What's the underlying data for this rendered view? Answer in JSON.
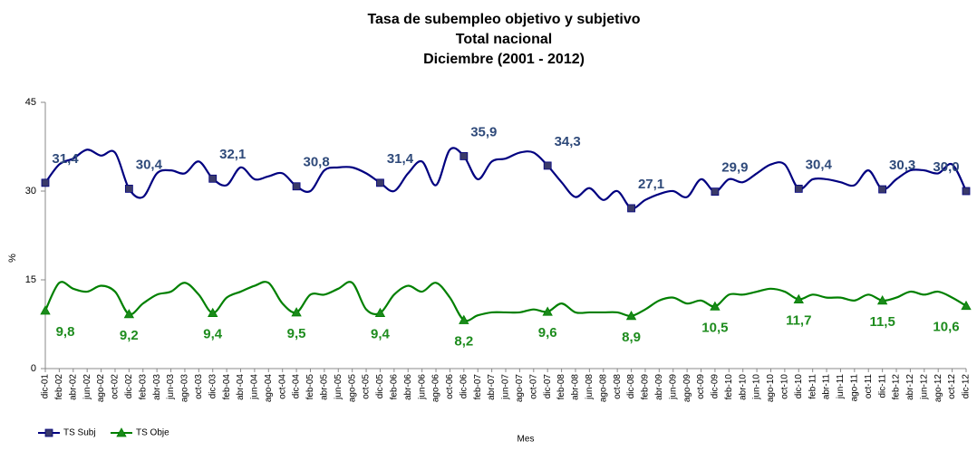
{
  "chart_data": {
    "type": "line",
    "title": "Tasa de subempleo objetivo y subjetivo",
    "subtitle": "Total nacional",
    "subtitle2": "Diciembre (2001 - 2012)",
    "y_label": "%",
    "x_label": "Mes",
    "categories": [
      "dic-01",
      "feb-02",
      "abr-02",
      "jun-02",
      "ago-02",
      "oct-02",
      "dic-02",
      "feb-03",
      "abr-03",
      "jun-03",
      "ago-03",
      "oct-03",
      "dic-03",
      "feb-04",
      "abr-04",
      "jun-04",
      "ago-04",
      "oct-04",
      "dic-04",
      "feb-05",
      "abr-05",
      "jun-05",
      "ago-05",
      "oct-05",
      "dic-05",
      "feb-06",
      "abr-06",
      "jun-06",
      "ago-06",
      "oct-06",
      "dic-06",
      "feb-07",
      "abr-07",
      "jun-07",
      "ago-07",
      "oct-07",
      "dic-07",
      "feb-08",
      "abr-08",
      "jun-08",
      "ago-08",
      "oct-08",
      "dic-08",
      "feb-09",
      "abr-09",
      "jun-09",
      "ago-09",
      "oct-09",
      "dic-09",
      "feb-10",
      "abr-10",
      "jun-10",
      "ago-10",
      "oct-10",
      "dic-10",
      "feb-11",
      "abr-11",
      "jun-11",
      "ago-11",
      "oct-11",
      "dic-11",
      "feb-12",
      "abr-12",
      "jun-12",
      "ago-12",
      "oct-12",
      "dic-12"
    ],
    "series": [
      {
        "name": "TS Subj",
        "color": "#000080",
        "marker": "square",
        "marker_color": "#3a3a6a",
        "label_color": "#2f4a7a",
        "values": [
          31.4,
          34.5,
          35.5,
          37,
          36,
          36.5,
          30.4,
          29,
          33,
          33.5,
          33,
          35,
          32.1,
          31,
          34,
          32,
          32.5,
          33,
          30.8,
          30,
          33.5,
          34,
          34,
          33,
          31.4,
          30,
          33,
          35,
          31,
          37,
          35.9,
          32,
          35,
          35.5,
          36.5,
          36.5,
          34.3,
          31.5,
          29,
          30.5,
          28.5,
          30,
          27.1,
          28.5,
          29.5,
          30,
          29,
          32,
          29.9,
          32,
          31.5,
          33,
          34.5,
          34.5,
          30.4,
          32,
          32,
          31.5,
          31,
          33.5,
          30.3,
          32,
          33.5,
          33.5,
          33,
          34.5,
          30.0
        ],
        "value_labels": [
          "31,4",
          null,
          null,
          null,
          null,
          null,
          "30,4",
          null,
          null,
          null,
          null,
          null,
          "32,1",
          null,
          null,
          null,
          null,
          null,
          "30,8",
          null,
          null,
          null,
          null,
          null,
          "31,4",
          null,
          null,
          null,
          null,
          null,
          "35,9",
          null,
          null,
          null,
          null,
          null,
          "34,3",
          null,
          null,
          null,
          null,
          null,
          "27,1",
          null,
          null,
          null,
          null,
          null,
          "29,9",
          null,
          null,
          null,
          null,
          null,
          "30,4",
          null,
          null,
          null,
          null,
          null,
          "30,3",
          null,
          null,
          null,
          null,
          null,
          "30,0"
        ]
      },
      {
        "name": "TS Obje",
        "color": "#008000",
        "marker": "triangle",
        "marker_color": "#1a8a1a",
        "label_color": "#1e8c1e",
        "values": [
          9.8,
          14.5,
          13.5,
          13,
          14,
          13,
          9.2,
          11,
          12.5,
          13,
          14.5,
          12.5,
          9.4,
          12,
          13,
          14,
          14.5,
          11,
          9.5,
          12.5,
          12.5,
          13.5,
          14.5,
          10,
          9.4,
          12.5,
          14,
          13,
          14.5,
          12,
          8.2,
          9,
          9.5,
          9.5,
          9.5,
          10,
          9.6,
          11,
          9.5,
          9.5,
          9.5,
          9.5,
          8.9,
          10,
          11.5,
          12,
          11,
          11.5,
          10.5,
          12.5,
          12.5,
          13,
          13.5,
          13,
          11.7,
          12.5,
          12,
          12,
          11.5,
          12.5,
          11.5,
          12,
          13,
          12.5,
          13,
          12,
          10.6
        ],
        "value_labels": [
          "9,8",
          null,
          null,
          null,
          null,
          null,
          "9,2",
          null,
          null,
          null,
          null,
          null,
          "9,4",
          null,
          null,
          null,
          null,
          null,
          "9,5",
          null,
          null,
          null,
          null,
          null,
          "9,4",
          null,
          null,
          null,
          null,
          null,
          "8,2",
          null,
          null,
          null,
          null,
          null,
          "9,6",
          null,
          null,
          null,
          null,
          null,
          "8,9",
          null,
          null,
          null,
          null,
          null,
          "10,5",
          null,
          null,
          null,
          null,
          null,
          "11,7",
          null,
          null,
          null,
          null,
          null,
          "11,5",
          null,
          null,
          null,
          null,
          null,
          "10,6"
        ]
      }
    ],
    "ylim": [
      0,
      45
    ],
    "yticks": [
      0,
      15,
      30,
      45
    ],
    "grid": false,
    "legend": "bottom-left"
  }
}
